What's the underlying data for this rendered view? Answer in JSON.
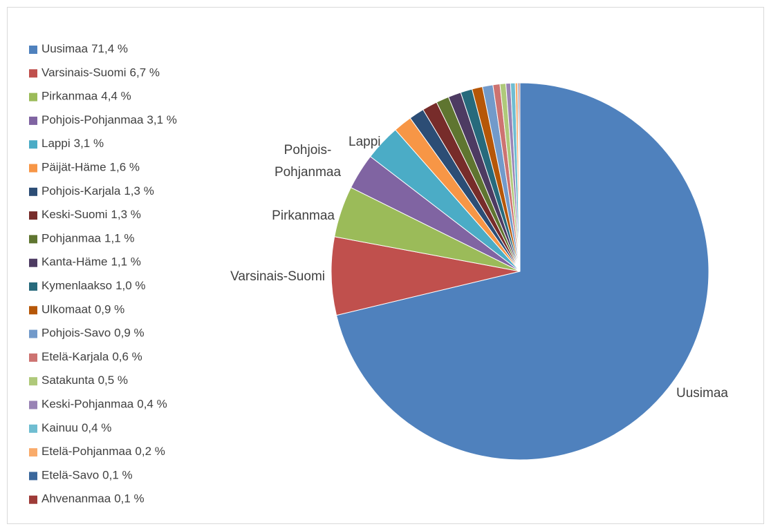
{
  "chart_data": {
    "type": "pie",
    "categories": [
      "Uusimaa",
      "Varsinais-Suomi",
      "Pirkanmaa",
      "Pohjois-Pohjanmaa",
      "Lappi",
      "Päijät-Häme",
      "Pohjois-Karjala",
      "Keski-Suomi",
      "Pohjanmaa",
      "Kanta-Häme",
      "Kymenlaakso",
      "Ulkomaat",
      "Pohjois-Savo",
      "Etelä-Karjala",
      "Satakunta",
      "Keski-Pohjanmaa",
      "Kainuu",
      "Etelä-Pohjanmaa",
      "Etelä-Savo",
      "Ahvenanmaa"
    ],
    "values": [
      71.4,
      6.7,
      4.4,
      3.1,
      3.1,
      1.6,
      1.3,
      1.3,
      1.1,
      1.1,
      1.0,
      0.9,
      0.9,
      0.6,
      0.5,
      0.4,
      0.4,
      0.2,
      0.1,
      0.1
    ],
    "value_labels": [
      "71,4 %",
      "6,7 %",
      "4,4 %",
      "3,1 %",
      "3,1 %",
      "1,6 %",
      "1,3 %",
      "1,3 %",
      "1,1 %",
      "1,1 %",
      "1,0 %",
      "0,9 %",
      "0,9 %",
      "0,6 %",
      "0,5 %",
      "0,4 %",
      "0,4 %",
      "0,2 %",
      "0,1 %",
      "0,1 %"
    ],
    "colors": [
      "#4f81bd",
      "#c0504d",
      "#9bbb59",
      "#8064a2",
      "#4bacc6",
      "#f79646",
      "#2c4d75",
      "#772c2a",
      "#5f7530",
      "#4d3b62",
      "#276a7c",
      "#b65708",
      "#729aca",
      "#cd7371",
      "#afc97a",
      "#9983b5",
      "#6fbdd1",
      "#f9ab6b",
      "#3a679c",
      "#9e3b38"
    ],
    "legend": "left"
  }
}
